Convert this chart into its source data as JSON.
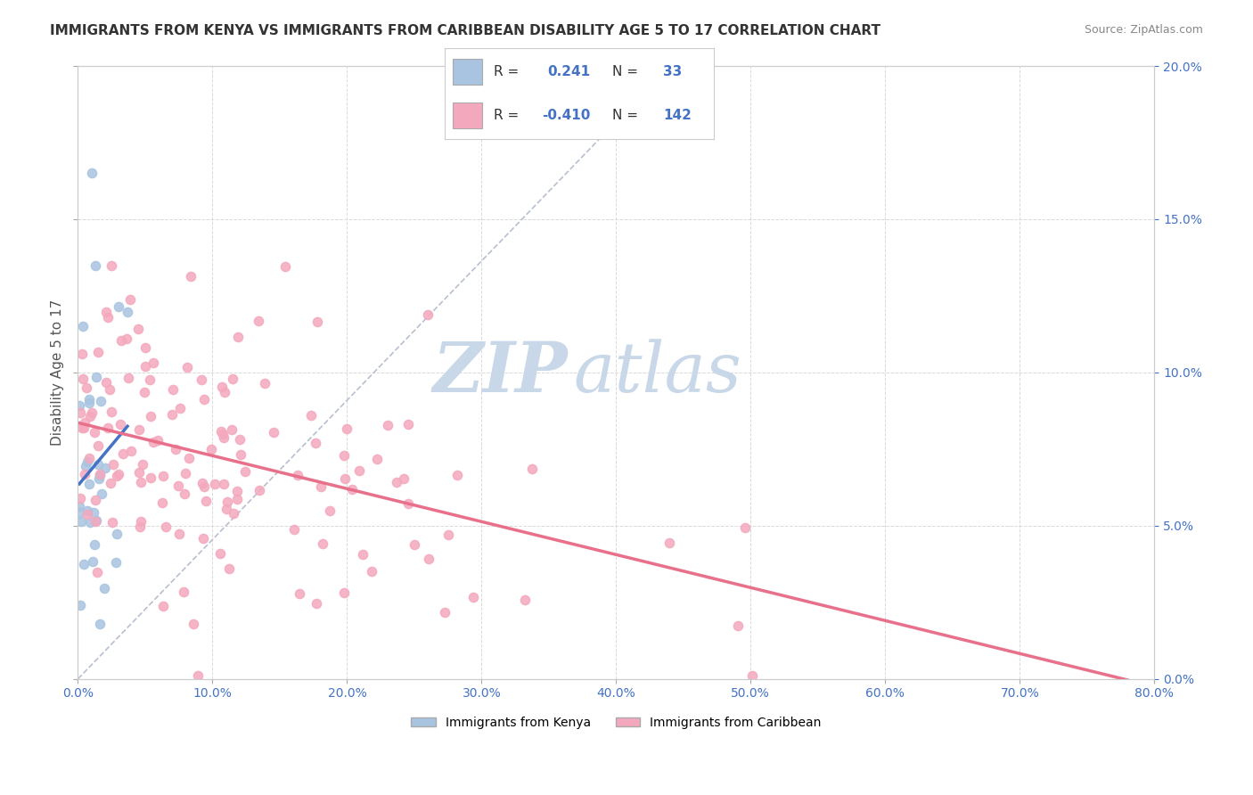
{
  "title": "IMMIGRANTS FROM KENYA VS IMMIGRANTS FROM CARIBBEAN DISABILITY AGE 5 TO 17 CORRELATION CHART",
  "source": "Source: ZipAtlas.com",
  "ylabel": "Disability Age 5 to 17",
  "kenya_R": 0.241,
  "kenya_N": 33,
  "caribbean_R": -0.41,
  "caribbean_N": 142,
  "kenya_color": "#a8c4e0",
  "caribbean_color": "#f4a8be",
  "kenya_line_color": "#4472c4",
  "caribbean_line_color": "#e8708a",
  "watermark_zip": "ZIP",
  "watermark_atlas": "atlas",
  "watermark_color": "#c8d8e8",
  "background_color": "#ffffff",
  "grid_color": "#d0d0d0"
}
